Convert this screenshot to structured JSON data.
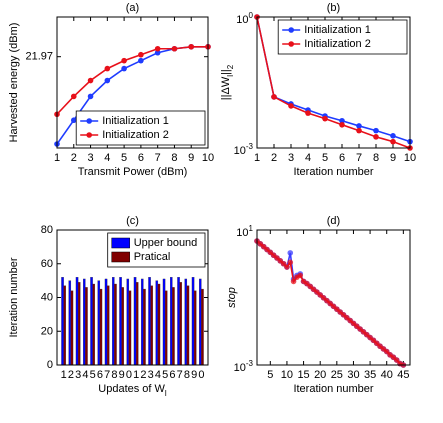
{
  "chart_data": [
    {
      "type": "line",
      "title": "(a)",
      "xlabel": "Transmit Power (dBm)",
      "ylabel": "Harvested energy (dBm)",
      "x": [
        1,
        2,
        3,
        4,
        5,
        6,
        7,
        8,
        9,
        10
      ],
      "xlim": [
        1,
        10
      ],
      "xticks": [
        1,
        2,
        3,
        4,
        5,
        6,
        7,
        8,
        9,
        10
      ],
      "ylim": [
        21.74,
        22.07
      ],
      "yticks": [
        21.97
      ],
      "legend": "lower right",
      "series": [
        {
          "name": "Initialization 1",
          "color": "#1f3cff",
          "values": [
            21.75,
            21.81,
            21.87,
            21.91,
            21.94,
            21.96,
            21.98,
            21.99,
            21.995,
            21.995
          ]
        },
        {
          "name": "Initialization 2",
          "color": "#e8101a",
          "values": [
            21.825,
            21.87,
            21.91,
            21.94,
            21.96,
            21.975,
            21.99,
            21.99,
            21.995,
            21.995
          ]
        }
      ]
    },
    {
      "type": "line",
      "title": "(b)",
      "xlabel": "Iteration number",
      "ylabel": "||ΔW_l||_2",
      "x": [
        1,
        2,
        3,
        4,
        5,
        6,
        7,
        8,
        9,
        10
      ],
      "xlim": [
        1,
        10
      ],
      "xticks": [
        1,
        2,
        3,
        4,
        5,
        6,
        7,
        8,
        9,
        10
      ],
      "yscale": "log",
      "ylim": [
        0.001,
        1
      ],
      "yticks": [
        {
          "value": 1,
          "label": "10^0"
        },
        {
          "value": 0.001,
          "label": "10^-3"
        }
      ],
      "legend": "upper right",
      "series": [
        {
          "name": "Initialization 1",
          "color": "#1f3cff",
          "values": [
            1,
            0.0148,
            0.0102,
            0.0074,
            0.0054,
            0.0042,
            0.0032,
            0.0025,
            0.0019,
            0.0014
          ]
        },
        {
          "name": "Initialization 2",
          "color": "#e8101a",
          "values": [
            1,
            0.0148,
            0.0092,
            0.0063,
            0.0047,
            0.0034,
            0.0025,
            0.0018,
            0.0014,
            0.001
          ]
        }
      ]
    },
    {
      "type": "bar",
      "title": "(c)",
      "xlabel": "Updates of W_l",
      "ylabel": "Iteration number",
      "categories": [
        "1",
        "2",
        "3",
        "4",
        "5",
        "6",
        "7",
        "8",
        "9",
        "0",
        "1",
        "2",
        "3",
        "4",
        "5",
        "6",
        "7",
        "8",
        "9",
        "0"
      ],
      "ylim": [
        0,
        80
      ],
      "yticks": [
        0,
        20,
        40,
        60,
        80
      ],
      "legend": "upper right",
      "series": [
        {
          "name": "Upper bound",
          "color": "#0000ff",
          "values": [
            52,
            50,
            52,
            51,
            52,
            50,
            51,
            52,
            52,
            51,
            52,
            51,
            52,
            50,
            51,
            52,
            52,
            51,
            52,
            51
          ]
        },
        {
          "name": "Pratical",
          "color": "#800000",
          "values": [
            47,
            44,
            49,
            46,
            48,
            45,
            47,
            48,
            46,
            44,
            49,
            45,
            47,
            48,
            44,
            46,
            49,
            47,
            44,
            45
          ]
        }
      ]
    },
    {
      "type": "line",
      "title": "(d)",
      "xlabel": "Iteration number",
      "ylabel": "stop",
      "x": [
        1,
        2,
        3,
        4,
        5,
        6,
        7,
        8,
        9,
        10,
        11,
        12,
        13,
        14,
        15,
        16,
        17,
        18,
        19,
        20,
        21,
        22,
        23,
        24,
        25,
        26,
        27,
        28,
        29,
        30,
        31,
        32,
        33,
        34,
        35,
        36,
        37,
        38,
        39,
        40,
        41,
        42,
        43,
        44,
        45
      ],
      "xlim": [
        1,
        47
      ],
      "xticks": [
        5,
        10,
        15,
        20,
        25,
        30,
        35,
        40,
        45
      ],
      "yscale": "log",
      "ylim": [
        0.001,
        10
      ],
      "yticks": [
        {
          "value": 10,
          "label": "10^1"
        },
        {
          "value": 0.001,
          "label": "10^-3"
        }
      ],
      "series": [
        {
          "color": "#3a3cff",
          "values": [
            4.72,
            3.89,
            3.21,
            2.64,
            2.18,
            1.79,
            1.48,
            1.22,
            1.0,
            0.8,
            2.1,
            0.35,
            0.45,
            0.5,
            0.3,
            0.258,
            0.213,
            0.175,
            0.145,
            0.119,
            0.098,
            0.0807,
            0.0665,
            0.0548,
            0.0452,
            0.0372,
            0.0307,
            0.0252,
            0.0208,
            0.0171,
            0.0141,
            0.0116,
            0.0096,
            0.0079,
            0.0065,
            0.0054,
            0.0044,
            0.0036,
            0.003,
            0.0025,
            0.002,
            0.0017,
            0.0014,
            0.0011,
            0.001
          ]
        },
        {
          "color": "#e8101a",
          "values": [
            4.72,
            3.89,
            3.21,
            2.64,
            2.18,
            1.79,
            1.48,
            1.22,
            1.0,
            0.8,
            1.1,
            0.3,
            0.4,
            0.45,
            0.3,
            0.258,
            0.213,
            0.175,
            0.145,
            0.119,
            0.098,
            0.0807,
            0.0665,
            0.0548,
            0.0452,
            0.0372,
            0.0307,
            0.0252,
            0.0208,
            0.0171,
            0.0141,
            0.0116,
            0.0096,
            0.0079,
            0.0065,
            0.0054,
            0.0044,
            0.0036,
            0.003,
            0.0025,
            0.002,
            0.0017,
            0.0014,
            0.0011,
            0.001
          ]
        }
      ]
    }
  ]
}
